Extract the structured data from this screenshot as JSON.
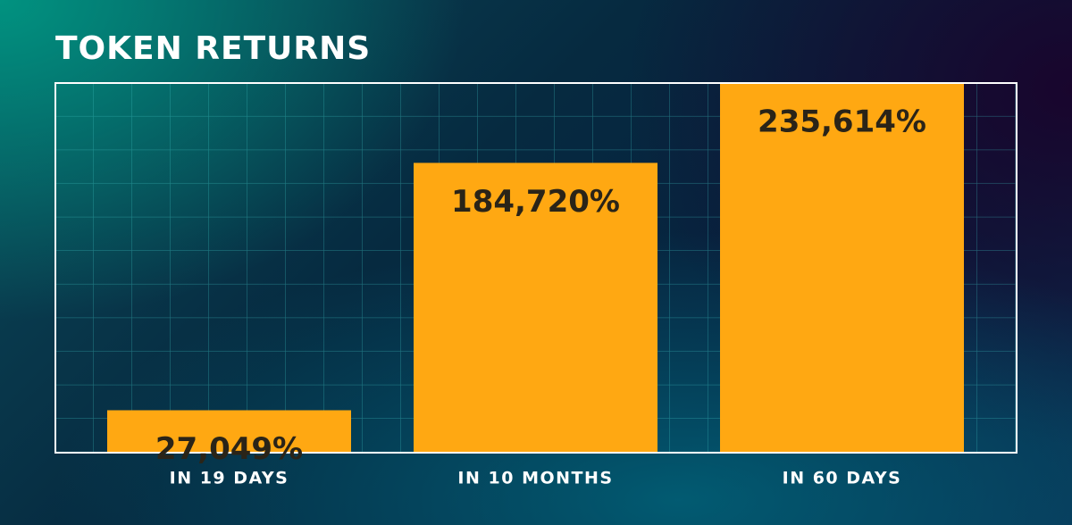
{
  "chart_data": {
    "type": "bar",
    "title": "TOKEN RETURNS",
    "categories": [
      "IN 19 DAYS",
      "IN 10 MONTHS",
      "IN 60 DAYS"
    ],
    "values": [
      27049,
      184720,
      235614
    ],
    "value_labels": [
      "27,049%",
      "184,720%",
      "235,614%"
    ],
    "color": "#ffa812"
  }
}
